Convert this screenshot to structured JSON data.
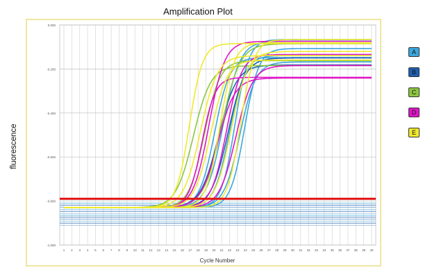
{
  "chart_data": {
    "type": "line",
    "title": "Amplification Plot",
    "xlabel": "Cycle Number",
    "ylabel": "fluorescence",
    "xlim": [
      1,
      40
    ],
    "ylim": [
      -1.0,
      0.0
    ],
    "x_ticks": [
      "1",
      "2",
      "3",
      "4",
      "5",
      "6",
      "7",
      "8",
      "9",
      "10",
      "11",
      "12",
      "13",
      "14",
      "15",
      "16",
      "17",
      "18",
      "19",
      "20",
      "21",
      "22",
      "23",
      "24",
      "25",
      "26",
      "27",
      "28",
      "29",
      "30",
      "31",
      "32",
      "33",
      "34",
      "35",
      "36",
      "37",
      "38",
      "39",
      "40"
    ],
    "y_ticks": [
      "0.000",
      "-0.200",
      "-0.400",
      "-0.600",
      "-0.800",
      "-1.000"
    ],
    "threshold": -0.79,
    "grid": true,
    "legend_position": "right",
    "series_groups": [
      {
        "name": "A",
        "color": "#3aa7dd",
        "ct": [
          17.5,
          18.6,
          19.4,
          20.1,
          20.7,
          21.3
        ]
      },
      {
        "name": "B",
        "color": "#1d5fb1",
        "ct": [
          18.0,
          19.2
        ]
      },
      {
        "name": "C",
        "color": "#8cc640",
        "ct": [
          14.8,
          16.2,
          18.4
        ]
      },
      {
        "name": "D",
        "color": "#e014c8",
        "ct": [
          15.9,
          16.8,
          17.9,
          19.0,
          20.2
        ]
      },
      {
        "name": "E",
        "color": "#f0e92b",
        "ct": [
          14.3,
          15.7,
          17.0,
          18.2,
          19.6,
          20.8
        ]
      }
    ],
    "plateau_range": [
      -0.05,
      -0.25
    ],
    "baseline_range": [
      -0.8,
      -0.9
    ]
  }
}
